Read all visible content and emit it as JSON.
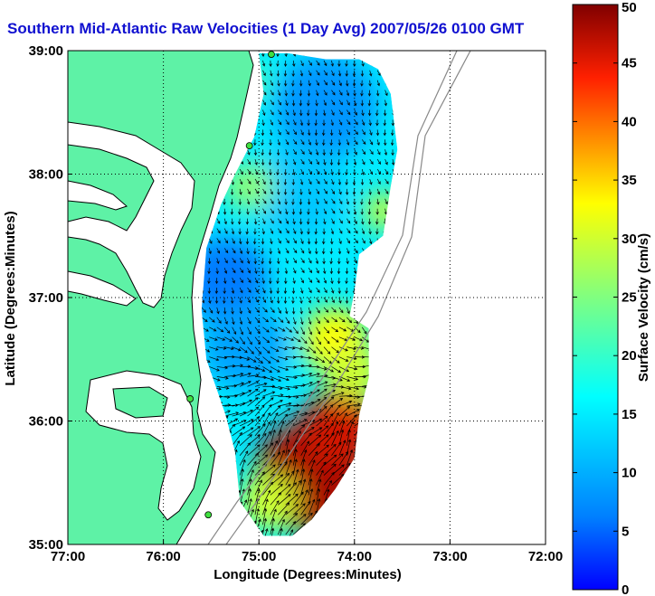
{
  "title": "Southern Mid-Atlantic Raw Velocities (1 Day Avg) 2007/05/26 0100 GMT",
  "colors": {
    "land": "#5ef2a6",
    "water": "#ffffff",
    "coast": "#000000",
    "title": "#1010d0",
    "grid": "#000000"
  },
  "chart_data": {
    "type": "heatmap",
    "title": "Southern Mid-Atlantic Raw Velocities (1 Day Avg) 2007/05/26 0100 GMT",
    "xlabel": "Longitude (Degrees:Minutes)",
    "ylabel": "Latitude (Degrees:Minutes)",
    "xlim": [
      -77,
      -72
    ],
    "ylim": [
      35,
      39
    ],
    "x_ticks": [
      {
        "value": -77,
        "label": "77:00"
      },
      {
        "value": -76,
        "label": "76:00"
      },
      {
        "value": -75,
        "label": "75:00"
      },
      {
        "value": -74,
        "label": "74:00"
      },
      {
        "value": -73,
        "label": "73:00"
      },
      {
        "value": -72,
        "label": "72:00"
      }
    ],
    "y_ticks": [
      {
        "value": 35,
        "label": "35:00"
      },
      {
        "value": 36,
        "label": "36:00"
      },
      {
        "value": 37,
        "label": "37:00"
      },
      {
        "value": 38,
        "label": "38:00"
      },
      {
        "value": 39,
        "label": "39:00"
      }
    ],
    "grid": true,
    "grid_style": "dotted",
    "colorbar": {
      "label": "Surface Velocity (cm/s)",
      "min": 0,
      "max": 50,
      "ticks": [
        0,
        5,
        10,
        15,
        20,
        25,
        30,
        35,
        40,
        45,
        50
      ],
      "colormap": "jet"
    },
    "sites": [
      {
        "lon": -74.87,
        "lat": 38.97
      },
      {
        "lon": -75.1,
        "lat": 38.23
      },
      {
        "lon": -75.72,
        "lat": 36.18
      },
      {
        "lon": -75.53,
        "lat": 35.24
      }
    ],
    "coverage_outline": [
      [
        -75.0,
        38.98
      ],
      [
        -74.7,
        38.98
      ],
      [
        -74.3,
        38.93
      ],
      [
        -73.95,
        38.93
      ],
      [
        -73.75,
        38.85
      ],
      [
        -73.62,
        38.65
      ],
      [
        -73.55,
        38.2
      ],
      [
        -73.62,
        37.9
      ],
      [
        -73.7,
        37.5
      ],
      [
        -73.95,
        37.35
      ],
      [
        -74.0,
        37.05
      ],
      [
        -74.05,
        36.85
      ],
      [
        -73.85,
        36.75
      ],
      [
        -73.85,
        36.35
      ],
      [
        -73.95,
        36.05
      ],
      [
        -74.0,
        35.7
      ],
      [
        -74.2,
        35.45
      ],
      [
        -74.45,
        35.2
      ],
      [
        -74.65,
        35.07
      ],
      [
        -74.95,
        35.07
      ],
      [
        -75.2,
        35.35
      ],
      [
        -75.25,
        35.75
      ],
      [
        -75.35,
        36.05
      ],
      [
        -75.55,
        36.5
      ],
      [
        -75.6,
        36.9
      ],
      [
        -75.55,
        37.4
      ],
      [
        -75.4,
        37.75
      ],
      [
        -75.25,
        38.0
      ],
      [
        -75.05,
        38.3
      ],
      [
        -74.95,
        38.65
      ],
      [
        -75.0,
        38.98
      ]
    ],
    "speed_regions": [
      {
        "lon": -74.45,
        "lat": 35.55,
        "radius_deg": 0.6,
        "speed": 48
      },
      {
        "lon": -74.15,
        "lat": 35.95,
        "radius_deg": 0.4,
        "speed": 46
      },
      {
        "lon": -74.2,
        "lat": 36.65,
        "radius_deg": 0.35,
        "speed": 33
      },
      {
        "lon": -74.0,
        "lat": 36.4,
        "radius_deg": 0.3,
        "speed": 30
      },
      {
        "lon": -74.9,
        "lat": 35.35,
        "radius_deg": 0.3,
        "speed": 30
      },
      {
        "lon": -75.35,
        "lat": 37.15,
        "radius_deg": 0.45,
        "speed": 6
      },
      {
        "lon": -75.15,
        "lat": 36.6,
        "radius_deg": 0.45,
        "speed": 9
      },
      {
        "lon": -74.3,
        "lat": 38.55,
        "radius_deg": 0.55,
        "speed": 8
      },
      {
        "lon": -74.6,
        "lat": 37.85,
        "radius_deg": 0.5,
        "speed": 12
      },
      {
        "lon": -75.1,
        "lat": 37.9,
        "radius_deg": 0.25,
        "speed": 26
      },
      {
        "lon": -73.7,
        "lat": 37.7,
        "radius_deg": 0.2,
        "speed": 30
      },
      {
        "lon": -75.1,
        "lat": 38.75,
        "radius_deg": 0.2,
        "speed": 22
      }
    ],
    "base_speed": 15,
    "flow": {
      "north": {
        "direction_deg": 165,
        "length_cm_s": 14
      },
      "south": {
        "direction_deg": 30,
        "length_cm_s": 40
      }
    }
  }
}
